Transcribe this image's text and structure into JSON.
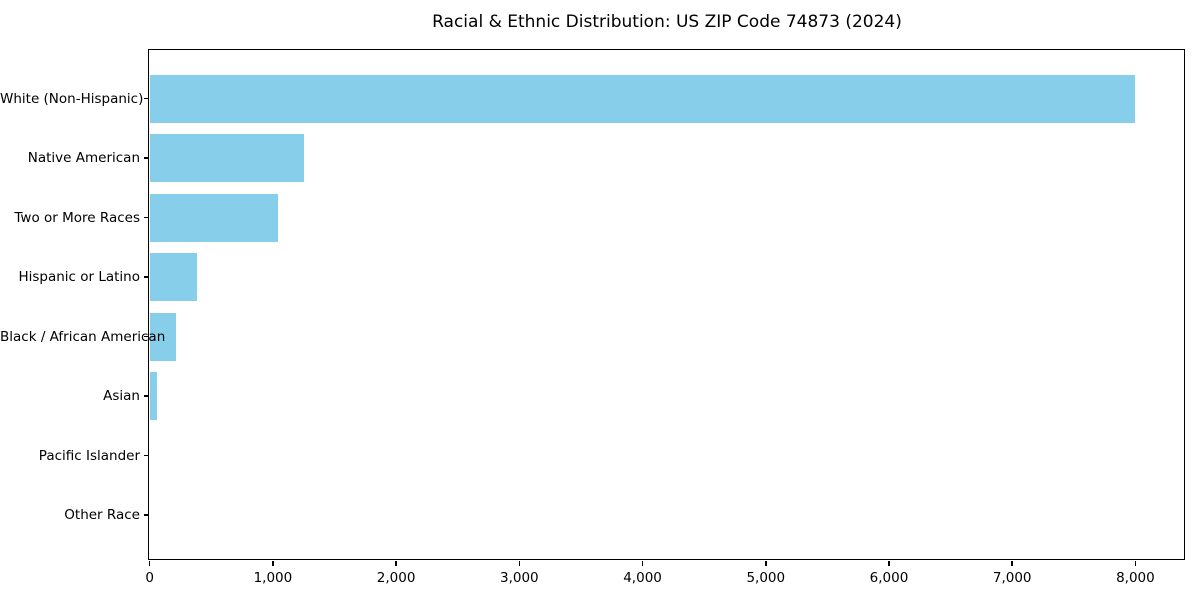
{
  "chart_data": {
    "type": "bar",
    "orientation": "horizontal",
    "title": "Racial & Ethnic Distribution: US ZIP Code 74873 (2024)",
    "categories": [
      "White (Non-Hispanic)",
      "Native American",
      "Two or More Races",
      "Hispanic or Latino",
      "Black / African American",
      "Asian",
      "Pacific Islander",
      "Other Race"
    ],
    "values": [
      8000,
      1250,
      1040,
      380,
      210,
      60,
      0,
      0
    ],
    "xlabel": "",
    "ylabel": "",
    "xlim": [
      0,
      8400
    ],
    "x_ticks": [
      0,
      1000,
      2000,
      3000,
      4000,
      5000,
      6000,
      7000,
      8000
    ],
    "x_tick_labels": [
      "0",
      "1,000",
      "2,000",
      "3,000",
      "4,000",
      "5,000",
      "6,000",
      "7,000",
      "8,000"
    ],
    "bar_color": "#87CEEB",
    "grid": false,
    "legend": null
  }
}
